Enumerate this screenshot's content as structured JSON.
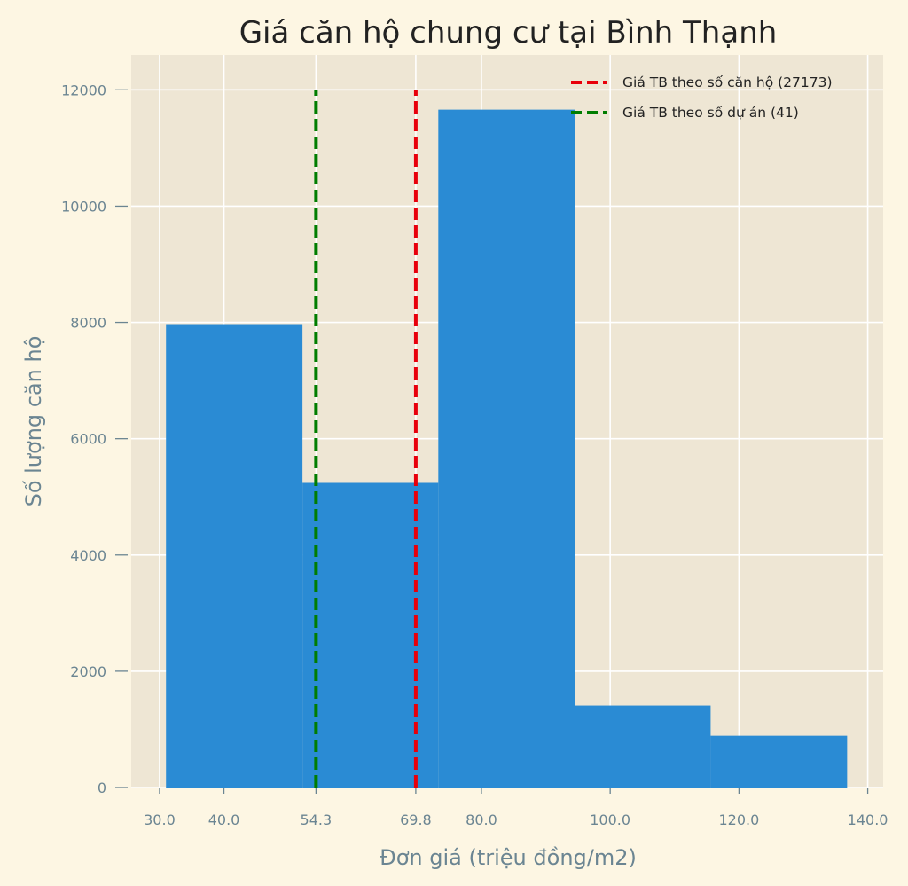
{
  "chart_data": {
    "type": "histogram",
    "title": "Giá căn hộ chung cư tại Bình Thạnh",
    "xlabel": "Đơn giá (triệu đồng/m2)",
    "ylabel": "Số lượng căn hộ",
    "xlim": [
      25.6,
      142.4
    ],
    "ylim": [
      0,
      12600
    ],
    "grid": true,
    "legend_position": "top-right",
    "bins": [
      {
        "x0": 31.0,
        "x1": 52.2,
        "count": 7970
      },
      {
        "x0": 52.2,
        "x1": 73.3,
        "count": 5240
      },
      {
        "x0": 73.3,
        "x1": 94.5,
        "count": 11660
      },
      {
        "x0": 94.5,
        "x1": 115.6,
        "count": 1410
      },
      {
        "x0": 115.6,
        "x1": 136.8,
        "count": 890
      }
    ],
    "bar_color": "#2a8bd4",
    "x_ticks": [
      {
        "value": 30.0,
        "label": "30.0"
      },
      {
        "value": 40.0,
        "label": "40.0"
      },
      {
        "value": 54.3,
        "label": "54.3"
      },
      {
        "value": 69.8,
        "label": "69.8"
      },
      {
        "value": 80.0,
        "label": "80.0"
      },
      {
        "value": 100.0,
        "label": "100.0"
      },
      {
        "value": 120.0,
        "label": "120.0"
      },
      {
        "value": 140.0,
        "label": "140.0"
      }
    ],
    "y_ticks": [
      {
        "value": 0,
        "label": "0"
      },
      {
        "value": 2000,
        "label": "2000"
      },
      {
        "value": 4000,
        "label": "4000"
      },
      {
        "value": 6000,
        "label": "6000"
      },
      {
        "value": 8000,
        "label": "8000"
      },
      {
        "value": 10000,
        "label": "10000"
      },
      {
        "value": 12000,
        "label": "12000"
      }
    ],
    "reference_lines": [
      {
        "name": "Giá TB theo số căn hộ (27173)",
        "x": 69.8,
        "y_top": 12000,
        "color": "#e8000b"
      },
      {
        "name": "Giá TB theo số dự án (41)",
        "x": 54.3,
        "y_top": 12000,
        "color": "#007d00"
      }
    ]
  }
}
